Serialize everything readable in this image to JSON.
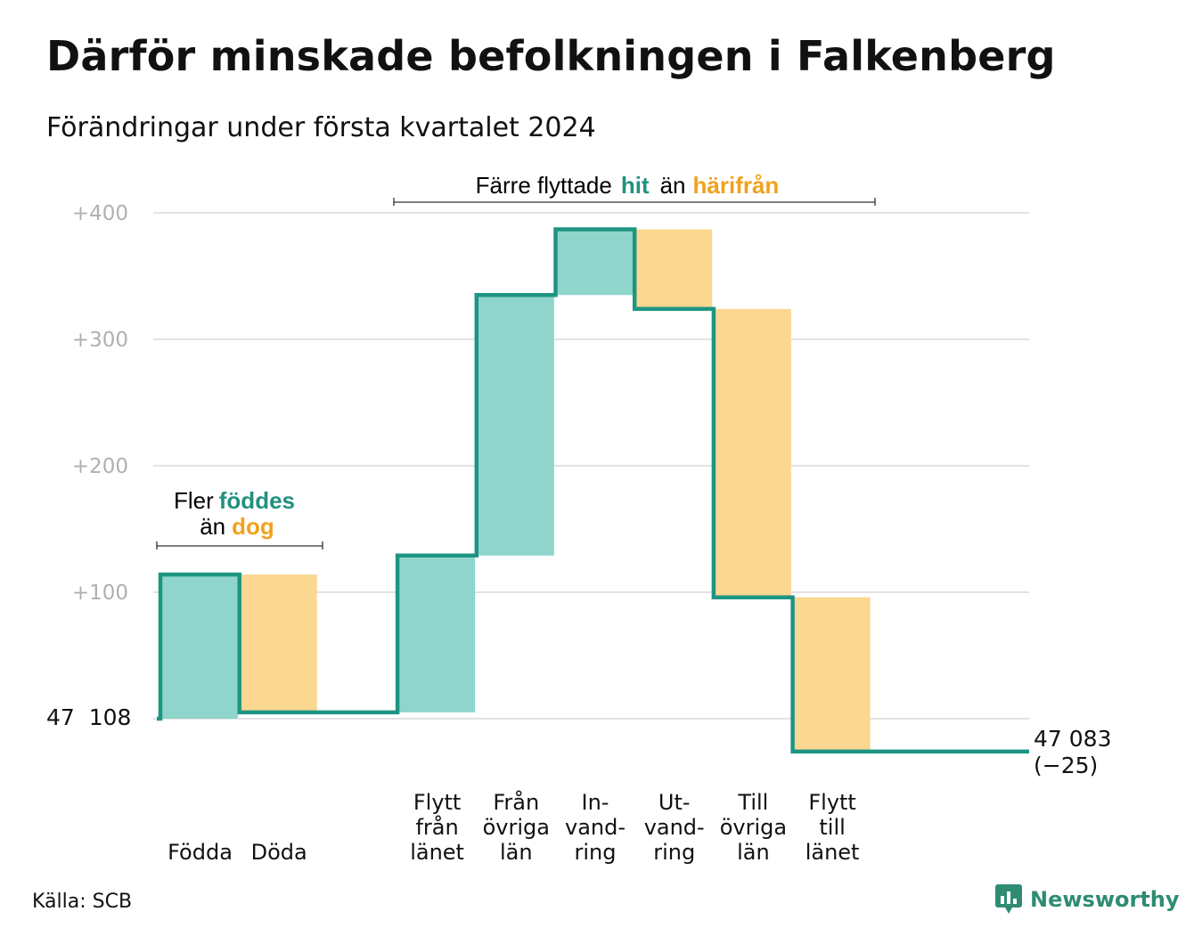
{
  "title": "Därför minskade befolkningen i Falkenberg",
  "subtitle": "Förändringar under första kvartalet 2024",
  "source": "Källa: SCB",
  "brand": "Newsworthy",
  "colors": {
    "increase": "#8fd5cb",
    "decrease": "#fbd791",
    "line": "#1e9583",
    "grid": "#e3e3e3",
    "tick_text": "#b0b0b0",
    "accent_green": "#21917f",
    "accent_orange": "#f0a21e",
    "logo": "#2f8c72"
  },
  "annotations": {
    "births": {
      "prefix": "Fler",
      "highlight1": "föddes",
      "middle": "än",
      "highlight2": "dog"
    },
    "migration": {
      "prefix": "Färre flyttade",
      "highlight1": "hit",
      "middle": "än",
      "highlight2": "härifrån"
    }
  },
  "chart_data": {
    "type": "waterfall",
    "start_label": "47  108",
    "start_value": 47108,
    "end_label": "47 083",
    "end_change": "(−25)",
    "end_value": 47083,
    "y_ticks": [
      "+100",
      "+200",
      "+300",
      "+400"
    ],
    "y_tick_values": [
      100,
      200,
      300,
      400
    ],
    "ylim": [
      -45,
      420
    ],
    "categories": [
      {
        "label": [
          "Födda"
        ],
        "value": 114,
        "direction": "increase"
      },
      {
        "label": [
          "Döda"
        ],
        "value": -109,
        "direction": "decrease"
      },
      {
        "label": [],
        "value": 0,
        "direction": "spacer"
      },
      {
        "label": [
          "Flytt",
          "från",
          "länet"
        ],
        "value": 124,
        "direction": "increase"
      },
      {
        "label": [
          "Från",
          "övriga",
          "län"
        ],
        "value": 206,
        "direction": "increase"
      },
      {
        "label": [
          "In-",
          "vand-",
          "ring"
        ],
        "value": 52,
        "direction": "increase"
      },
      {
        "label": [
          "Ut-",
          "vand-",
          "ring"
        ],
        "value": -63,
        "direction": "decrease"
      },
      {
        "label": [
          "Till",
          "övriga",
          "län"
        ],
        "value": -228,
        "direction": "decrease"
      },
      {
        "label": [
          "Flytt",
          "till",
          "länet"
        ],
        "value": -122,
        "direction": "decrease"
      }
    ]
  }
}
